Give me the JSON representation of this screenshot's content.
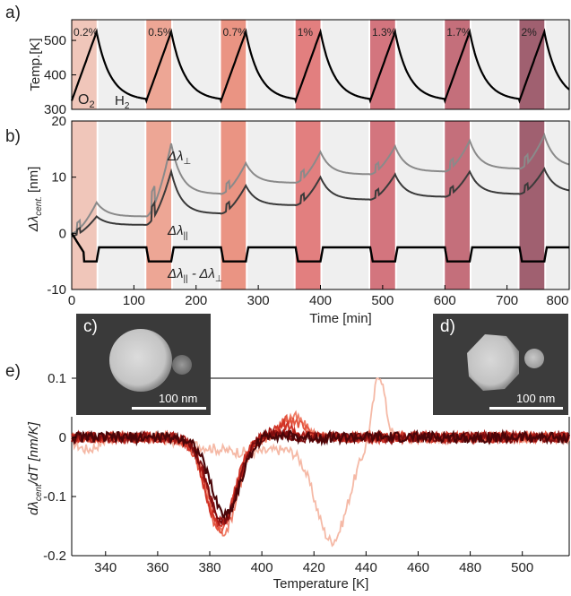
{
  "panels": {
    "a": "a)",
    "b": "b)",
    "c": "c)",
    "d": "d)",
    "e": "e)"
  },
  "gas_labels": {
    "o2": "O",
    "o2_sub": "2",
    "h2": "H",
    "h2_sub": "2"
  },
  "series_labels": {
    "perp": "Δλ",
    "perp_sub": "⊥",
    "par": "Δλ",
    "par_sub": "||",
    "diff": "Δλ",
    "diff_mid": " - Δλ",
    "diff_sub1": "||",
    "diff_sub2": "⊥"
  },
  "insets": {
    "c": {
      "label": "c)",
      "scalebar": "100 nm"
    },
    "d": {
      "label": "d)",
      "scalebar": "100 nm"
    }
  },
  "colors": {
    "curve_black": "#000000",
    "perp_gray": "#8a8a8a",
    "par_dark": "#3a3a3a",
    "gray_band": "#e2e2e2"
  },
  "chart_data": [
    {
      "id": "temperature",
      "type": "line",
      "ylabel": "Temp.[K]",
      "xlim": [
        0,
        800
      ],
      "ylim": [
        300,
        560
      ],
      "yticks": [
        300,
        400,
        500
      ],
      "cycle_starts": [
        0,
        120,
        240,
        360,
        480,
        600,
        720
      ],
      "h2_period_minutes": 40,
      "concentrations": [
        "0.2%",
        "0.5%",
        "0.7%",
        "1%",
        "1.3%",
        "1.7%",
        "2%"
      ],
      "band_colors": [
        "#f0c6ba",
        "#eda695",
        "#ea9483",
        "#e27f7f",
        "#d3757e",
        "#c46f7b",
        "#a06070"
      ],
      "series": [
        {
          "name": "",
          "peak": 525,
          "base": 325
        }
      ]
    },
    {
      "id": "shift",
      "type": "line",
      "xlabel": "Time [min]",
      "ylabel": "Δλ",
      "ylabel_sub": "cent.",
      "ylabel_unit": " [nm]",
      "xlim": [
        0,
        800
      ],
      "ylim": [
        -10,
        20
      ],
      "yticks": [
        -10,
        0,
        10,
        20
      ],
      "xticks": [
        0,
        100,
        200,
        300,
        400,
        500,
        600,
        700,
        800
      ],
      "series": [
        {
          "name": "Δλ⊥",
          "h2_peaks": [
            5.5,
            16,
            12.5,
            14.5,
            15.5,
            16.5,
            17.5
          ],
          "relaxed": [
            3,
            7,
            9,
            10.5,
            11,
            11.5,
            11.8
          ]
        },
        {
          "name": "Δλ||",
          "h2_peaks": [
            3,
            11,
            8.5,
            10,
            10.5,
            11,
            11.5
          ],
          "relaxed": [
            1.5,
            3.5,
            5,
            6,
            6.5,
            7,
            7.3
          ]
        },
        {
          "name": "Δλ|| - Δλ⊥",
          "o2_level": -2.5,
          "h2_level": -5,
          "initial_dip": -3.5
        }
      ]
    },
    {
      "id": "derivative",
      "type": "line",
      "xlabel": "Temperature [K]",
      "ylabel": "dλ",
      "ylabel_sub": "cent",
      "ylabel_unit": "/dT [nm/K]",
      "xlim": [
        327,
        518
      ],
      "ylim": [
        -0.2,
        0.1
      ],
      "yticks": [
        -0.2,
        -0.1,
        0,
        0.1
      ],
      "xticks": [
        340,
        360,
        380,
        400,
        420,
        440,
        460,
        480,
        500
      ],
      "series": [
        {
          "name": "",
          "color": "#f5b9a6",
          "trough": [
            427,
            -0.17
          ],
          "spike": [
            445,
            0.1
          ]
        },
        {
          "name": "",
          "color": "#ef7e68",
          "trough": [
            385,
            -0.16
          ],
          "bump": [
            412,
            0.035
          ]
        },
        {
          "name": "",
          "color": "#e4553f",
          "trough": [
            384,
            -0.155
          ],
          "bump": [
            411,
            0.03
          ]
        },
        {
          "name": "",
          "color": "#d03226",
          "trough": [
            384,
            -0.15
          ],
          "bump": [
            409,
            0.02
          ]
        },
        {
          "name": "",
          "color": "#a81a16",
          "trough": [
            385,
            -0.145
          ],
          "bump": [
            406,
            0.01
          ]
        },
        {
          "name": "",
          "color": "#7b0c0e",
          "trough": [
            385,
            -0.14
          ],
          "bump": [
            405,
            0.008
          ]
        },
        {
          "name": "",
          "color": "#4a0508",
          "trough": [
            386,
            -0.13
          ],
          "bump": [
            404,
            0.005
          ]
        }
      ]
    }
  ]
}
